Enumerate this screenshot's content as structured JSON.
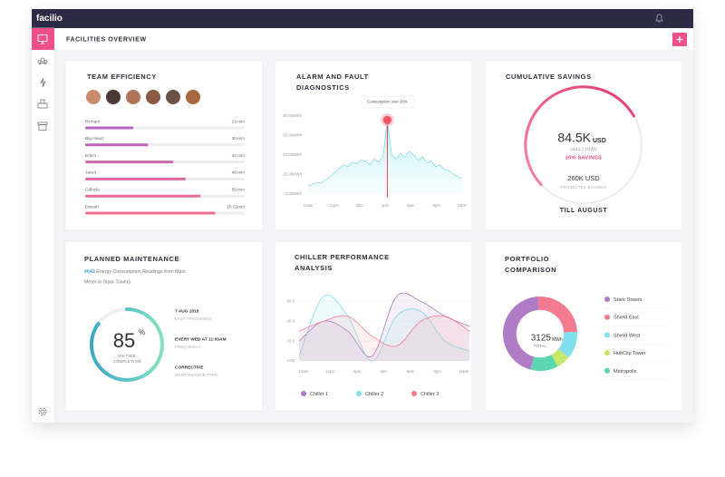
{
  "app": {
    "logo": "facilio",
    "page_title": "FACILITIES OVERVIEW"
  },
  "team_efficiency": {
    "type": "bar",
    "title": "TEAM EFFICIENCY",
    "categories": [
      "Richard",
      "Big Head",
      "Erlich",
      "Jared",
      "Gilfoyle",
      "Dinesh"
    ],
    "values": [
      23,
      30,
      42,
      48,
      55,
      62
    ],
    "value_labels": [
      "23 min",
      "30 min",
      "42 min",
      "48 min",
      "55 min",
      "1h 02min"
    ],
    "colors": [
      "#b466c9",
      "#c264b8",
      "#d168a9",
      "#dd6a9e",
      "#e86b95",
      "#f06c8e"
    ],
    "xlim": [
      0,
      76
    ]
  },
  "alarm": {
    "type": "line",
    "title_lines": [
      "ALARM AND FAULT",
      "DIAGNOSTICS"
    ],
    "annotation": "Consumption over 20%",
    "ylim": [
      0,
      80
    ],
    "yticks": [
      {
        "value": 80,
        "label": "80.00MWh"
      },
      {
        "value": 60,
        "label": "60.00MWh"
      },
      {
        "value": 40,
        "label": "40.00MWh"
      },
      {
        "value": 20,
        "label": "20.00MWh"
      },
      {
        "value": 0,
        "label": "0.00MWh"
      }
    ],
    "x_labels": [
      "10am",
      "12pm",
      "2pm",
      "4pm",
      "6pm",
      "8pm",
      "10pm"
    ],
    "color": "#7fd6e6",
    "values": [
      8,
      10,
      12,
      11,
      15,
      18,
      22,
      26,
      30,
      28,
      33,
      31,
      35,
      34,
      30,
      36,
      33,
      38,
      76,
      40,
      36,
      42,
      38,
      44,
      40,
      35,
      38,
      32,
      34,
      28,
      30,
      25,
      24,
      20,
      18,
      16
    ]
  },
  "savings": {
    "title": "CUMULATIVE SAVINGS",
    "amount": "84.5K",
    "currency": "USD",
    "energy": "3444.23MWh",
    "savings_label": "20% SAVINGS",
    "projected": "260K USD",
    "projected_label": "PROJECTED SAVINGS",
    "period": "TILL AUGUST"
  },
  "maintenance": {
    "title": "PLANNED MAINTENANCE",
    "ticket_id": "#642",
    "description_lines": [
      "Energy Consumption Readings from Main",
      "Meter in Stark Towers"
    ],
    "value": 85,
    "unit": "%",
    "label_lines": [
      "ON-TIME",
      "COMPLETION"
    ],
    "details": [
      {
        "value": "7 AUG 2018",
        "label": "LAST TRIGGERED"
      },
      {
        "value": "EVERY WED AT 11:00AM",
        "label": "FREQUENCY"
      },
      {
        "value": "CORRECTIVE",
        "label": "MAINTENANCE TYPE"
      }
    ]
  },
  "chiller": {
    "type": "line",
    "title_lines": [
      "CHILLER PERFORMANCE",
      "ANALYSIS"
    ],
    "ylim": [
      0,
      75
    ],
    "yticks": [
      {
        "value": 60,
        "label": "60.0"
      },
      {
        "value": 40,
        "label": "40.0"
      },
      {
        "value": 20,
        "label": "20.0"
      },
      {
        "value": 0,
        "label": "0.00"
      }
    ],
    "x_labels": [
      "10am",
      "12pm",
      "2pm",
      "4pm",
      "6pm",
      "8pm",
      "10pm"
    ],
    "series": [
      {
        "name": "Chiller 1",
        "color": "#b07cc6",
        "values": [
          20,
          40,
          30,
          5,
          65,
          60,
          45,
          35
        ]
      },
      {
        "name": "Chiller 2",
        "color": "#7fdde9",
        "values": [
          5,
          65,
          45,
          0,
          45,
          50,
          20,
          10
        ]
      },
      {
        "name": "Chiller 3",
        "color": "#f47b8f",
        "values": [
          30,
          40,
          45,
          25,
          15,
          40,
          45,
          30
        ]
      }
    ]
  },
  "portfolio": {
    "type": "pie",
    "title_lines": [
      "PORTFOLIO",
      "COMPARISON"
    ],
    "total": "3125",
    "total_unit": "MWh",
    "total_label": "TOTAL",
    "categories": [
      "Stark Towers",
      "Shield East",
      "Shield West",
      "HubCity Tower",
      "Metropolis"
    ],
    "values": [
      45,
      25,
      12,
      6,
      12
    ],
    "colors": [
      "#b07cc6",
      "#f47b8f",
      "#7fe0ec",
      "#c7e86a",
      "#5bd6b0"
    ]
  }
}
